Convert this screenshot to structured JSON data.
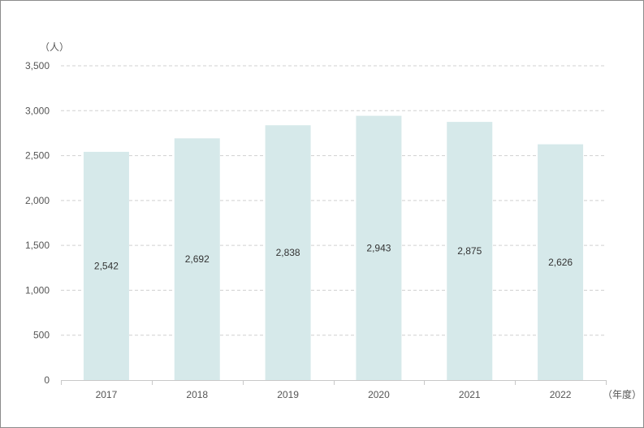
{
  "chart_data": {
    "type": "bar",
    "categories": [
      "2017",
      "2018",
      "2019",
      "2020",
      "2021",
      "2022"
    ],
    "values": [
      2542,
      2692,
      2838,
      2943,
      2875,
      2626
    ],
    "value_labels": [
      "2,542",
      "2,692",
      "2,838",
      "2,943",
      "2,875",
      "2,626"
    ],
    "y_unit": "（人）",
    "x_unit": "（年度）",
    "ylim": [
      0,
      3500
    ],
    "y_ticks": [
      0,
      500,
      1000,
      1500,
      2000,
      2500,
      3000,
      3500
    ],
    "y_tick_labels": [
      "0",
      "500",
      "1,000",
      "1,500",
      "2,000",
      "2,500",
      "3,000",
      "3,500"
    ],
    "grid": true,
    "bar_color": "#d6e9ea",
    "grid_color": "#d0d0d0",
    "axis_color": "#c8c8c8"
  }
}
